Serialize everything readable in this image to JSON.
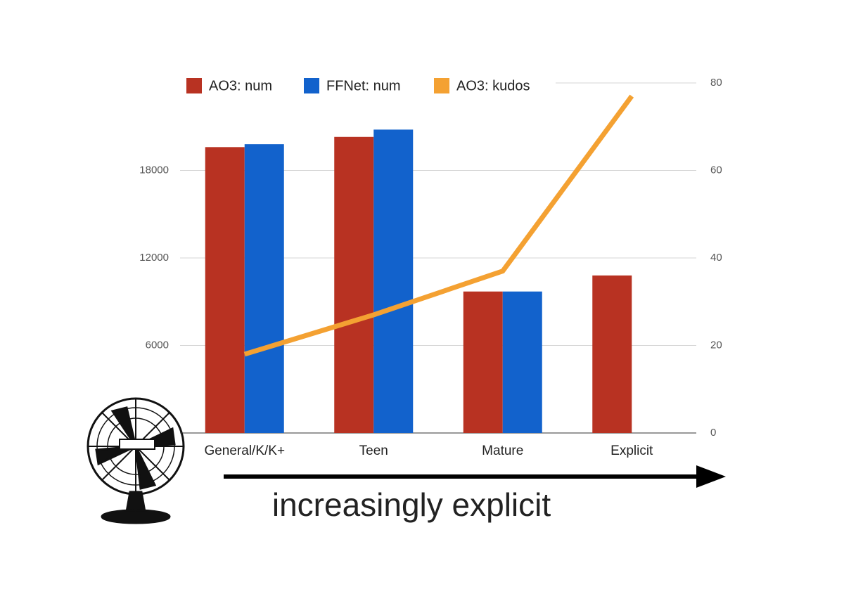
{
  "chart_data": {
    "type": "bar",
    "categories": [
      "General/K/K+",
      "Teen",
      "Mature",
      "Explicit"
    ],
    "series": [
      {
        "name": "AO3: num",
        "color": "#b83222",
        "values": [
          19600,
          20300,
          9700,
          10800
        ]
      },
      {
        "name": "FFNet: num",
        "color": "#1262cc",
        "values": [
          19800,
          20800,
          9700,
          null
        ]
      },
      {
        "name": "AO3: kudos",
        "color": "#f4a132",
        "type": "line",
        "axis": "y2",
        "values": [
          18,
          27,
          37,
          77
        ]
      }
    ],
    "ylim": [
      0,
      24000
    ],
    "yticks": [
      6000,
      12000,
      18000
    ],
    "y2lim": [
      0,
      80
    ],
    "y2ticks": [
      0,
      20,
      40,
      60,
      80
    ],
    "grid": true,
    "legend": "top",
    "annotation": "increasingly explicit"
  }
}
